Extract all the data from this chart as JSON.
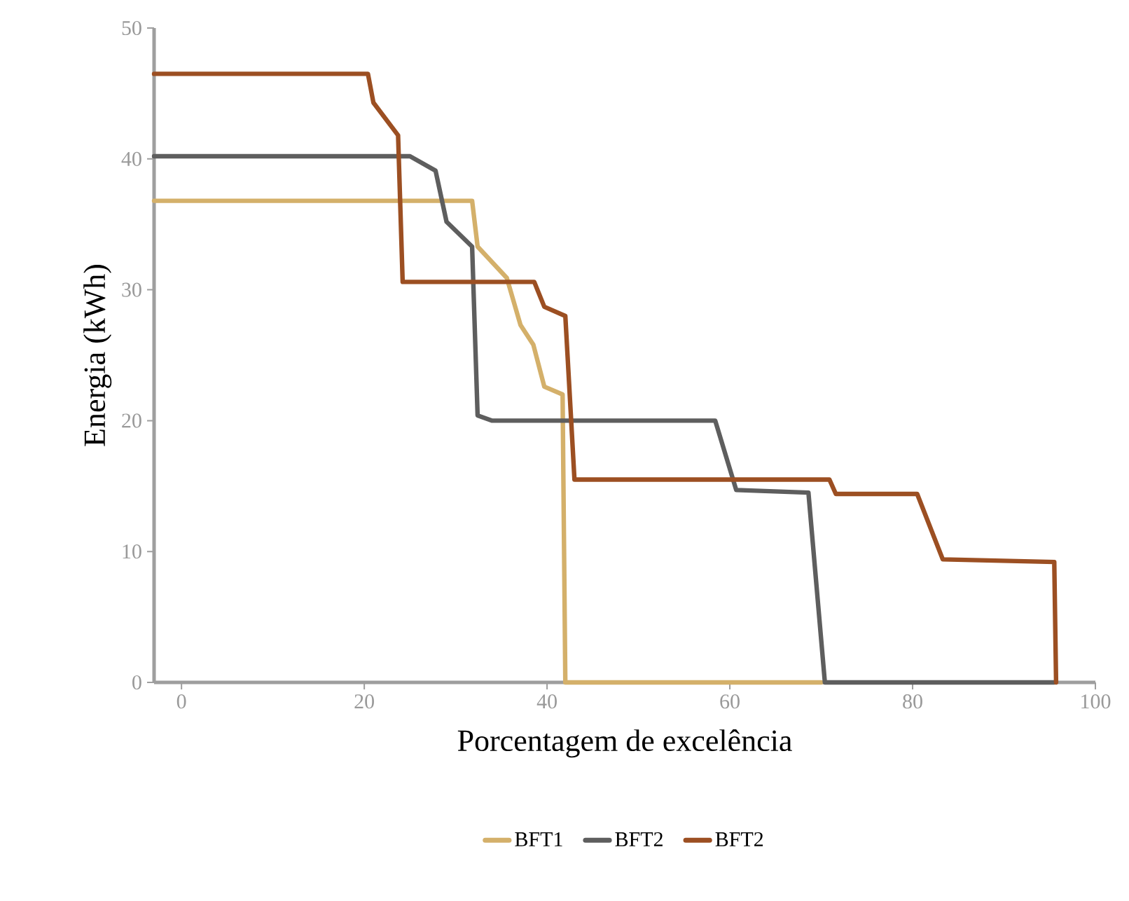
{
  "chart_data": {
    "type": "line",
    "xlabel": "Porcentagem de excelência",
    "ylabel": "Energia (kWh)",
    "xlim": [
      -3,
      100
    ],
    "ylim": [
      0,
      50
    ],
    "xticks": [
      0,
      20,
      40,
      60,
      80,
      100
    ],
    "yticks": [
      0,
      10,
      20,
      30,
      40,
      50
    ],
    "legend": "bottom",
    "grid": false,
    "marker": "none",
    "line_style": "solid",
    "series": [
      {
        "name": "BFT1",
        "color": "#d4b06a",
        "x": [
          -3,
          31.8,
          32.4,
          35.6,
          37.1,
          38.5,
          39.7,
          41.7,
          42,
          70
        ],
        "values": [
          36.8,
          36.8,
          33.3,
          30.9,
          27.3,
          25.8,
          22.6,
          22,
          0,
          0
        ]
      },
      {
        "name": "BFT2",
        "color": "#5e5e5e",
        "x": [
          -3,
          25,
          27.8,
          29,
          31.8,
          32.4,
          34,
          58.4,
          60.7,
          68.6,
          70.4,
          95.5
        ],
        "values": [
          40.2,
          40.2,
          39.1,
          35.2,
          33.3,
          20.4,
          20,
          20,
          14.7,
          14.5,
          0,
          0
        ]
      },
      {
        "name": "BFT2",
        "color": "#9c4f22",
        "x": [
          -3,
          20.4,
          21,
          23.7,
          24.2,
          38.6,
          39.7,
          42,
          43,
          70.9,
          71.6,
          80.5,
          83.3,
          95.5,
          95.7
        ],
        "values": [
          46.5,
          46.5,
          44.3,
          41.8,
          30.6,
          30.6,
          28.7,
          28,
          15.5,
          15.5,
          14.4,
          14.4,
          9.4,
          9.2,
          0
        ]
      }
    ]
  }
}
